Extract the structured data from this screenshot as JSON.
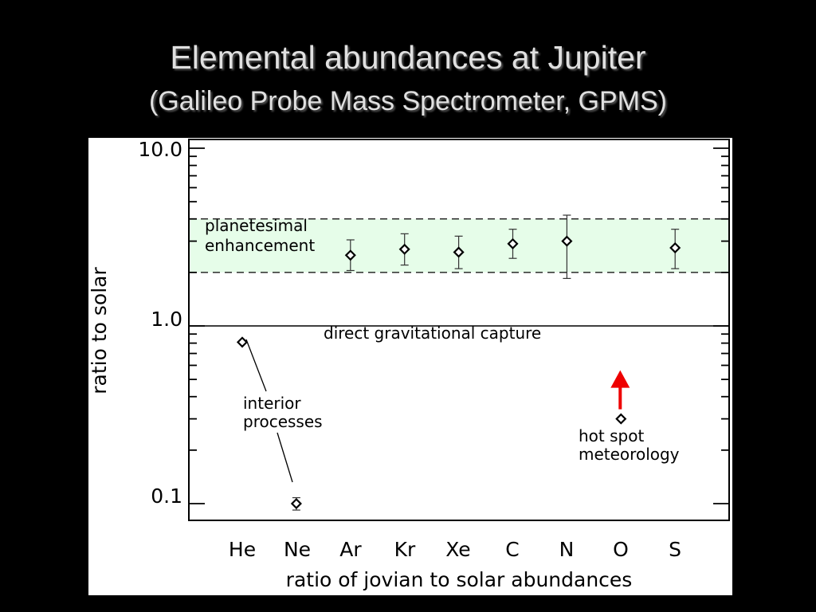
{
  "slide": {
    "title": "Elemental abundances at Jupiter",
    "subtitle": "(Galileo Probe Mass Spectrometer, GPMS)"
  },
  "chart_data": {
    "type": "scatter",
    "title": "",
    "xlabel": "ratio of jovian to solar abundances",
    "ylabel": "ratio to solar",
    "yscale": "log",
    "ylim": [
      0.08,
      10.0
    ],
    "y_ticks": [
      {
        "value": 10.0,
        "label": "10.0"
      },
      {
        "value": 1.0,
        "label": "1.0"
      },
      {
        "value": 0.1,
        "label": "0.1"
      }
    ],
    "categories": [
      "He",
      "Ne",
      "Ar",
      "Kr",
      "Xe",
      "C",
      "N",
      "O",
      "S"
    ],
    "points": [
      {
        "element": "He",
        "value": 0.81
      },
      {
        "element": "Ne",
        "value": 0.1,
        "err_low": 0.092,
        "err_high": 0.108
      },
      {
        "element": "Ar",
        "value": 2.5,
        "err_low": 2.05,
        "err_high": 3.05
      },
      {
        "element": "Kr",
        "value": 2.7,
        "err_low": 2.2,
        "err_high": 3.3
      },
      {
        "element": "Xe",
        "value": 2.6,
        "err_low": 2.1,
        "err_high": 3.2
      },
      {
        "element": "C",
        "value": 2.9,
        "err_low": 2.4,
        "err_high": 3.5
      },
      {
        "element": "N",
        "value": 3.0,
        "err_low": 1.85,
        "err_high": 4.2
      },
      {
        "element": "O",
        "value": 0.3
      },
      {
        "element": "S",
        "value": 2.75,
        "err_low": 2.1,
        "err_high": 3.5
      }
    ],
    "band": {
      "low": 2.0,
      "high": 4.0,
      "color": "#e6fde9"
    },
    "reference_line": 1.0,
    "annotations": {
      "band_label_1": "planetesimal",
      "band_label_2": "enhancement",
      "capture_label": "direct gravitational capture",
      "interior_label_1": "interior",
      "interior_label_2": "processes",
      "hotspot_label_1": "hot spot",
      "hotspot_label_2": "meteorology"
    },
    "arrow": {
      "element": "O",
      "direction": "up",
      "color": "#ee0000"
    },
    "grid": false
  }
}
